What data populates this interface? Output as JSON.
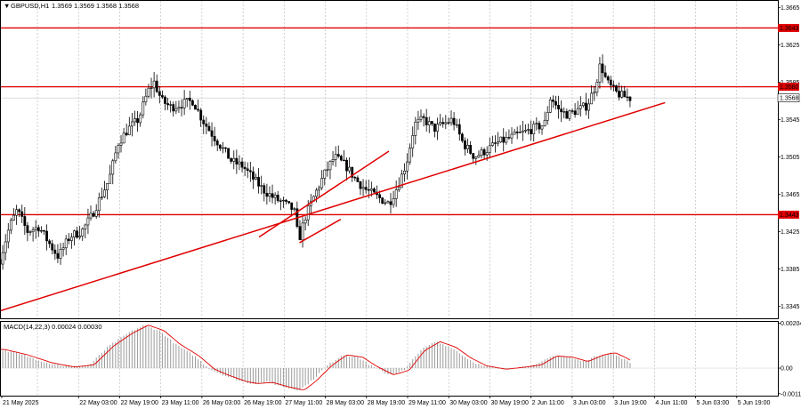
{
  "header": {
    "symbol_label": "GBPUSD,H1",
    "ohlc_label": "1.3569 1.3569 1.3568 1.3568",
    "dropdown_glyph": "▼"
  },
  "macd": {
    "label": "MACD(14,22,3) 0.00024 0.00030",
    "ticks": [
      "0.00204",
      "0.00",
      "-0.00116"
    ]
  },
  "colors": {
    "background": "#ffffff",
    "grid": "#b5b5b5",
    "candle": "#000000",
    "level": "#e00000",
    "trend": "#e00000",
    "price_tag": "#e00000",
    "histogram": "#9a9a9a",
    "signal": "#e00000"
  },
  "chart_data": [
    {
      "type": "candlestick",
      "title": "GBPUSD,H1",
      "ylim": [
        1.3332,
        1.3672
      ],
      "y_ticks": [
        "1.3665",
        "1.3625",
        "1.3585",
        "1.3545",
        "1.3505",
        "1.3465",
        "1.3425",
        "1.3385",
        "1.3345"
      ],
      "x_ticks": [
        "21 May 2025",
        "22 May 03:00",
        "22 May 19:00",
        "23 May 11:00",
        "26 May 03:00",
        "26 May 19:00",
        "27 May 11:00",
        "28 May 03:00",
        "28 May 19:00",
        "29 May 11:00",
        "30 May 03:00",
        "30 May 19:00",
        "2 Jun 11:00",
        "3 Jun 03:00",
        "3 Jun 19:00",
        "4 Jun 11:00",
        "5 Jun 03:00",
        "5 Jun 19:00"
      ],
      "levels": [
        {
          "price": 1.3643,
          "label": "1.3643"
        },
        {
          "price": 1.358,
          "label": "1.3580"
        },
        {
          "price": 1.3443,
          "label": "1.3443"
        }
      ],
      "current_price": {
        "price": 1.3568,
        "label": "1.3568"
      },
      "trendlines": [
        {
          "x0": 0.0,
          "y0": 1.334,
          "x1": 0.855,
          "y1": 1.3563
        },
        {
          "x0": 0.333,
          "y0": 1.3419,
          "x1": 0.5,
          "y1": 1.3511
        },
        {
          "x0": 0.385,
          "y0": 1.3413,
          "x1": 0.438,
          "y1": 1.3438
        }
      ],
      "series_anchors": [
        [
          0.0,
          1.3395
        ],
        [
          0.012,
          1.343
        ],
        [
          0.022,
          1.3448
        ],
        [
          0.035,
          1.3425
        ],
        [
          0.05,
          1.343
        ],
        [
          0.065,
          1.341
        ],
        [
          0.075,
          1.3398
        ],
        [
          0.09,
          1.342
        ],
        [
          0.105,
          1.3425
        ],
        [
          0.118,
          1.3442
        ],
        [
          0.128,
          1.346
        ],
        [
          0.14,
          1.348
        ],
        [
          0.152,
          1.352
        ],
        [
          0.165,
          1.3535
        ],
        [
          0.178,
          1.3545
        ],
        [
          0.19,
          1.3575
        ],
        [
          0.198,
          1.3585
        ],
        [
          0.208,
          1.3565
        ],
        [
          0.22,
          1.3558
        ],
        [
          0.235,
          1.3562
        ],
        [
          0.248,
          1.3565
        ],
        [
          0.26,
          1.3545
        ],
        [
          0.272,
          1.353
        ],
        [
          0.285,
          1.3515
        ],
        [
          0.298,
          1.35
        ],
        [
          0.312,
          1.3495
        ],
        [
          0.325,
          1.3482
        ],
        [
          0.338,
          1.347
        ],
        [
          0.35,
          1.3462
        ],
        [
          0.365,
          1.3455
        ],
        [
          0.378,
          1.3448
        ],
        [
          0.384,
          1.3415
        ],
        [
          0.392,
          1.344
        ],
        [
          0.405,
          1.3465
        ],
        [
          0.418,
          1.3488
        ],
        [
          0.43,
          1.3505
        ],
        [
          0.445,
          1.3495
        ],
        [
          0.458,
          1.348
        ],
        [
          0.47,
          1.347
        ],
        [
          0.485,
          1.3462
        ],
        [
          0.5,
          1.3455
        ],
        [
          0.512,
          1.3475
        ],
        [
          0.523,
          1.35
        ],
        [
          0.533,
          1.354
        ],
        [
          0.545,
          1.3545
        ],
        [
          0.558,
          1.3535
        ],
        [
          0.57,
          1.354
        ],
        [
          0.582,
          1.3545
        ],
        [
          0.595,
          1.352
        ],
        [
          0.61,
          1.3505
        ],
        [
          0.625,
          1.3512
        ],
        [
          0.64,
          1.352
        ],
        [
          0.655,
          1.3525
        ],
        [
          0.67,
          1.353
        ],
        [
          0.685,
          1.3535
        ],
        [
          0.7,
          1.354
        ],
        [
          0.708,
          1.357
        ],
        [
          0.718,
          1.3555
        ],
        [
          0.73,
          1.355
        ],
        [
          0.742,
          1.3555
        ],
        [
          0.755,
          1.356
        ],
        [
          0.765,
          1.358
        ],
        [
          0.772,
          1.3605
        ],
        [
          0.78,
          1.3585
        ],
        [
          0.79,
          1.3575
        ],
        [
          0.8,
          1.357
        ],
        [
          0.81,
          1.3568
        ]
      ]
    },
    {
      "type": "histogram",
      "title": "MACD(14,22,3) 0.00024 0.00030",
      "ylim": [
        -0.00125,
        0.0021
      ],
      "y_ticks": [
        "0.00204",
        "0.00",
        "-0.00116"
      ],
      "anchors": [
        [
          0.0,
          0.00085
        ],
        [
          0.03,
          0.0006
        ],
        [
          0.06,
          0.00025
        ],
        [
          0.09,
          5e-05
        ],
        [
          0.115,
          0.00015
        ],
        [
          0.14,
          0.001
        ],
        [
          0.165,
          0.0016
        ],
        [
          0.185,
          0.00195
        ],
        [
          0.205,
          0.0017
        ],
        [
          0.225,
          0.0011
        ],
        [
          0.25,
          0.00055
        ],
        [
          0.27,
          -5e-05
        ],
        [
          0.29,
          -0.00035
        ],
        [
          0.31,
          -0.0006
        ],
        [
          0.325,
          -0.0007
        ],
        [
          0.345,
          -0.00065
        ],
        [
          0.365,
          -0.00085
        ],
        [
          0.385,
          -0.001
        ],
        [
          0.4,
          -0.0006
        ],
        [
          0.42,
          0.0001
        ],
        [
          0.44,
          0.0006
        ],
        [
          0.46,
          0.0005
        ],
        [
          0.48,
          5e-05
        ],
        [
          0.5,
          -0.0003
        ],
        [
          0.52,
          -0.0001
        ],
        [
          0.54,
          0.0008
        ],
        [
          0.56,
          0.0012
        ],
        [
          0.58,
          0.00095
        ],
        [
          0.6,
          0.00045
        ],
        [
          0.62,
          0.0001
        ],
        [
          0.645,
          -5e-05
        ],
        [
          0.67,
          5e-05
        ],
        [
          0.69,
          0.00015
        ],
        [
          0.71,
          0.00055
        ],
        [
          0.73,
          0.0005
        ],
        [
          0.75,
          0.0003
        ],
        [
          0.77,
          0.0006
        ],
        [
          0.785,
          0.0007
        ],
        [
          0.8,
          0.00045
        ],
        [
          0.81,
          0.00024
        ]
      ]
    }
  ]
}
